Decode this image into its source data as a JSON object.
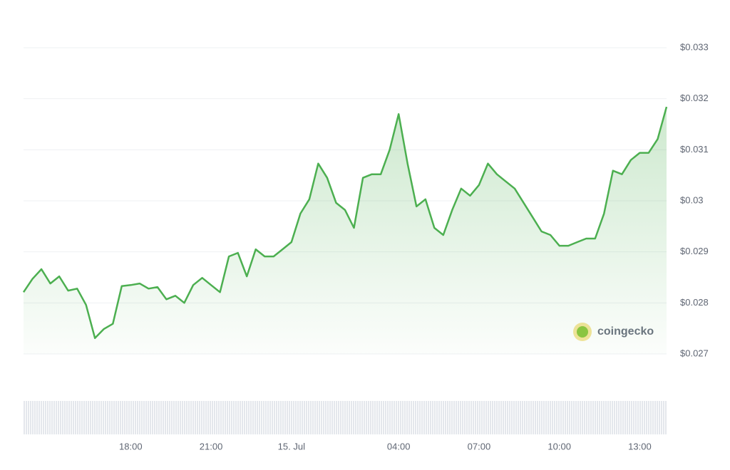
{
  "chart_data": {
    "type": "line",
    "brand": "coingecko",
    "color": "#4caf50",
    "grid": true,
    "xlim": [
      0,
      1440
    ],
    "xticks": [
      {
        "value": 240,
        "label": "18:00"
      },
      {
        "value": 420,
        "label": "21:00"
      },
      {
        "value": 600,
        "label": "15. Jul"
      },
      {
        "value": 840,
        "label": "04:00"
      },
      {
        "value": 1020,
        "label": "07:00"
      },
      {
        "value": 1200,
        "label": "10:00"
      },
      {
        "value": 1380,
        "label": "13:00"
      }
    ],
    "ylim": [
      0.027,
      0.033
    ],
    "yticks": [
      {
        "value": 0.027,
        "label": "$0.027"
      },
      {
        "value": 0.028,
        "label": "$0.028"
      },
      {
        "value": 0.029,
        "label": "$0.029"
      },
      {
        "value": 0.03,
        "label": "$0.03"
      },
      {
        "value": 0.031,
        "label": "$0.031"
      },
      {
        "value": 0.032,
        "label": "$0.032"
      },
      {
        "value": 0.033,
        "label": "$0.033"
      }
    ],
    "x": [
      0,
      20,
      40,
      60,
      80,
      100,
      120,
      140,
      160,
      180,
      200,
      220,
      240,
      260,
      280,
      300,
      320,
      340,
      360,
      380,
      400,
      420,
      440,
      460,
      480,
      500,
      520,
      540,
      560,
      580,
      600,
      620,
      640,
      660,
      680,
      700,
      720,
      740,
      760,
      780,
      800,
      820,
      840,
      860,
      880,
      900,
      920,
      940,
      960,
      980,
      1000,
      1020,
      1040,
      1060,
      1080,
      1100,
      1120,
      1140,
      1160,
      1180,
      1200,
      1220,
      1240,
      1260,
      1280,
      1300,
      1320,
      1340,
      1360,
      1380,
      1400,
      1420,
      1440
    ],
    "values": [
      0.02821,
      0.02847,
      0.02866,
      0.02838,
      0.02852,
      0.02824,
      0.02828,
      0.02796,
      0.02731,
      0.02749,
      0.02759,
      0.02833,
      0.02835,
      0.02838,
      0.02828,
      0.02831,
      0.02807,
      0.02814,
      0.028,
      0.02835,
      0.02849,
      0.02835,
      0.02821,
      0.02891,
      0.02898,
      0.02852,
      0.02905,
      0.02891,
      0.02891,
      0.02905,
      0.02919,
      0.02975,
      0.03003,
      0.03073,
      0.03045,
      0.02996,
      0.02982,
      0.02947,
      0.03045,
      0.03052,
      0.03052,
      0.031,
      0.0317,
      0.03073,
      0.02989,
      0.03003,
      0.02947,
      0.02933,
      0.02982,
      0.03024,
      0.0301,
      0.03031,
      0.03073,
      0.03052,
      0.03038,
      0.03024,
      0.02996,
      0.02968,
      0.0294,
      0.02933,
      0.02912,
      0.02912,
      0.02919,
      0.02926,
      0.02926,
      0.02975,
      0.03059,
      0.03052,
      0.0308,
      0.03094,
      0.03094,
      0.03121,
      0.03184
    ]
  }
}
